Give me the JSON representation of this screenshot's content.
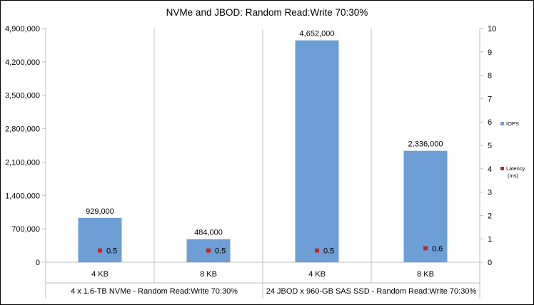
{
  "chart_data": {
    "type": "bar",
    "title": "NVMe and JBOD: Random Read:Write 70:30%",
    "categories": [
      "4 KB",
      "8 KB",
      "4 KB",
      "8 KB"
    ],
    "groups": [
      {
        "label": "4 x 1.6-TB NVMe - Random Read:Write 70:30%",
        "categories": [
          "4 KB",
          "8 KB"
        ]
      },
      {
        "label": "24 JBOD x 960-GB SAS SSD - Random Read:Write 70:30%",
        "categories": [
          "4 KB",
          "8 KB"
        ]
      }
    ],
    "series": [
      {
        "name": "IOPS",
        "type": "bar",
        "axis": "left",
        "color": "#6d9ed6",
        "values": [
          929000,
          484000,
          4652000,
          2336000
        ],
        "labels": [
          "929,000",
          "484,000",
          "4,652,000",
          "2,336,000"
        ]
      },
      {
        "name": "Latency (ms)",
        "legend_lines": [
          "Latency",
          "(ms)"
        ],
        "type": "scatter",
        "axis": "right",
        "color": "#c0282c",
        "values": [
          0.5,
          0.5,
          0.5,
          0.6
        ],
        "labels": [
          "0.5",
          "0.5",
          "0.5",
          "0.6"
        ]
      }
    ],
    "y_left": {
      "ylim": [
        0,
        4900000
      ],
      "ticks": [
        0,
        700000,
        1400000,
        2100000,
        2800000,
        3500000,
        4200000,
        4900000
      ],
      "tick_labels": [
        "0",
        "700,000",
        "1,400,000",
        "2,100,000",
        "2,800,000",
        "3,500,000",
        "4,200,000",
        "4,900,000"
      ]
    },
    "y_right": {
      "ylim": [
        0,
        10
      ],
      "ticks": [
        0,
        1,
        2,
        3,
        4,
        5,
        6,
        7,
        8,
        9,
        10
      ],
      "tick_labels": [
        "0",
        "1",
        "2",
        "3",
        "4",
        "5",
        "6",
        "7",
        "8",
        "9",
        "10"
      ]
    },
    "grid": "vertical lines at category boundaries",
    "legend_position": "right"
  }
}
